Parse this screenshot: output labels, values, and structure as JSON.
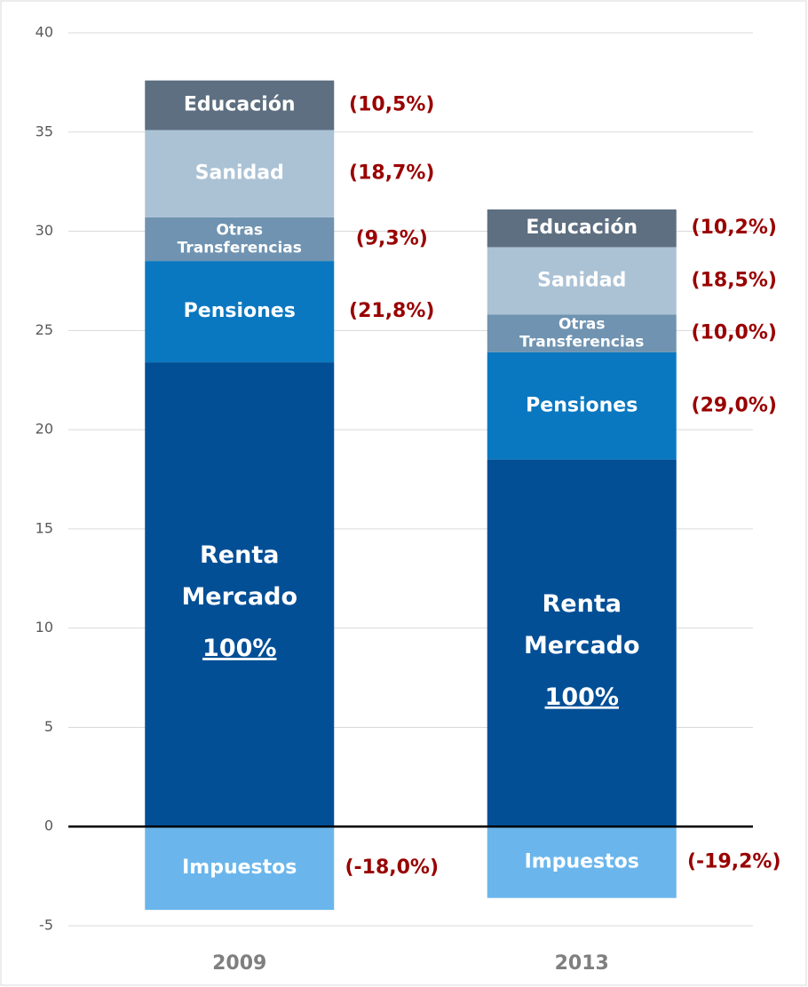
{
  "chart_data": {
    "type": "stacked-bar",
    "categories": [
      "2009",
      "2013"
    ],
    "series": [
      {
        "name": "Renta Mercado",
        "color": "#024f96",
        "values": [
          23.4,
          18.5
        ],
        "share_labels": [
          "100%",
          "100%"
        ]
      },
      {
        "name": "Pensiones",
        "color": "#0a78c0",
        "values": [
          5.1,
          5.4
        ],
        "share_labels": [
          "(21,8%)",
          "(29,0%)"
        ]
      },
      {
        "name": "Otras Transferencias",
        "color": "#6f93b0",
        "values": [
          2.2,
          1.9
        ],
        "share_labels": [
          "(9,3%)",
          "(10,0%)"
        ]
      },
      {
        "name": "Sanidad",
        "color": "#abc2d5",
        "values": [
          4.4,
          3.4
        ],
        "share_labels": [
          "(18,7%)",
          "(18,5%)"
        ]
      },
      {
        "name": "Educación",
        "color": "#5d6f80",
        "values": [
          2.5,
          1.9
        ],
        "share_labels": [
          "(10,5%)",
          "(10,2%)"
        ]
      },
      {
        "name": "Impuestos",
        "color": "#6ab6ec",
        "values": [
          -4.2,
          -3.6
        ],
        "share_labels": [
          "(-18,0%)",
          "(-19,2%)"
        ]
      }
    ],
    "ylim": [
      -5,
      40
    ],
    "yticks": [
      -5,
      0,
      5,
      10,
      15,
      20,
      25,
      30,
      35,
      40
    ],
    "grid": true
  }
}
